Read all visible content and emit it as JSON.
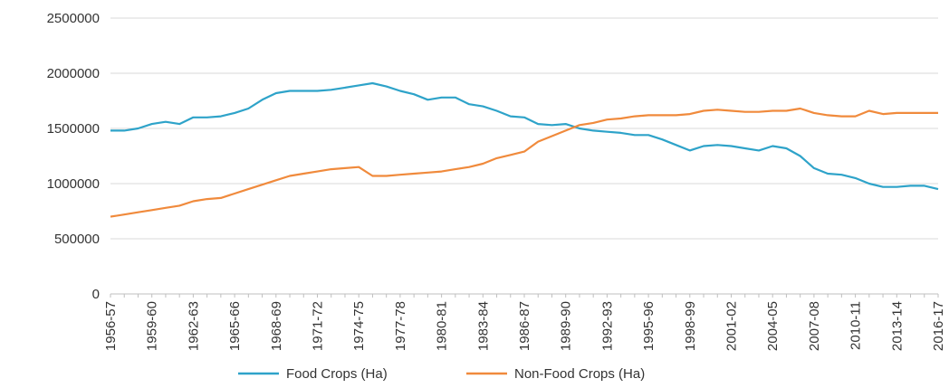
{
  "chart_data": {
    "type": "line",
    "title": "",
    "xlabel": "",
    "ylabel": "",
    "ylim": [
      0,
      2500000
    ],
    "yticks": [
      0,
      500000,
      1000000,
      1500000,
      2000000,
      2500000
    ],
    "grid": "horizontal",
    "legend_position": "bottom",
    "x_tick_labels": [
      "1956-57",
      "1959-60",
      "1962-63",
      "1965-66",
      "1968-69",
      "1971-72",
      "1974-75",
      "1977-78",
      "1980-81",
      "1983-84",
      "1986-87",
      "1989-90",
      "1992-93",
      "1995-96",
      "1998-99",
      "2001-02",
      "2004-05",
      "2007-08",
      "2010-11",
      "2013-14",
      "2016-17"
    ],
    "series": [
      {
        "name": "Food Crops (Ha)",
        "color": "#2ea3c9",
        "values": [
          1480000,
          1480000,
          1500000,
          1540000,
          1560000,
          1540000,
          1600000,
          1600000,
          1610000,
          1640000,
          1680000,
          1760000,
          1820000,
          1840000,
          1840000,
          1840000,
          1850000,
          1870000,
          1890000,
          1910000,
          1880000,
          1840000,
          1810000,
          1760000,
          1780000,
          1780000,
          1720000,
          1700000,
          1660000,
          1610000,
          1600000,
          1540000,
          1530000,
          1540000,
          1500000,
          1480000,
          1470000,
          1460000,
          1440000,
          1440000,
          1400000,
          1350000,
          1300000,
          1340000,
          1350000,
          1340000,
          1320000,
          1300000,
          1340000,
          1320000,
          1250000,
          1140000,
          1090000,
          1080000,
          1050000,
          1000000,
          970000,
          970000,
          980000,
          980000,
          950000
        ]
      },
      {
        "name": "Non-Food Crops (Ha)",
        "color": "#f08a3c",
        "values": [
          700000,
          720000,
          740000,
          760000,
          780000,
          800000,
          840000,
          860000,
          870000,
          910000,
          950000,
          990000,
          1030000,
          1070000,
          1090000,
          1110000,
          1130000,
          1140000,
          1150000,
          1070000,
          1070000,
          1080000,
          1090000,
          1100000,
          1110000,
          1130000,
          1150000,
          1180000,
          1230000,
          1260000,
          1290000,
          1380000,
          1430000,
          1480000,
          1530000,
          1550000,
          1580000,
          1590000,
          1610000,
          1620000,
          1620000,
          1620000,
          1630000,
          1660000,
          1670000,
          1660000,
          1650000,
          1650000,
          1660000,
          1660000,
          1680000,
          1640000,
          1620000,
          1610000,
          1610000,
          1660000,
          1630000,
          1640000,
          1640000,
          1640000,
          1640000
        ]
      }
    ]
  }
}
